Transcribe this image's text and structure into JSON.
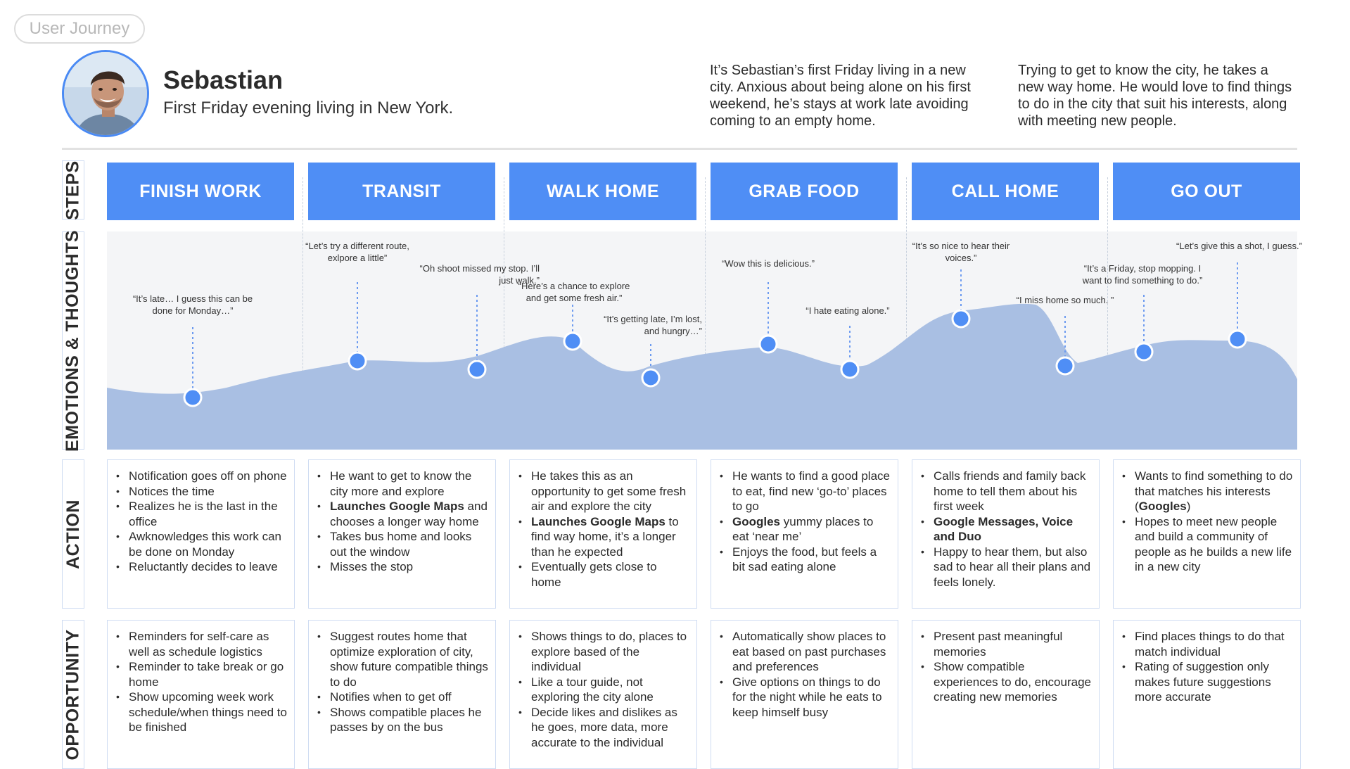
{
  "tag_label": "User Journey",
  "persona": {
    "name": "Sebastian",
    "subtitle": "First Friday evening living in New York."
  },
  "intro_left": [
    "It’s Sebastian’s first Friday living in a new",
    "city. Anxious about being alone on his first",
    "weekend, he’s stays at work late avoiding",
    "coming to an empty home."
  ],
  "intro_right": [
    "Trying to get to know the city, he takes a",
    "new way home. He would love to find things",
    "to do in the city that suit his interests, along",
    "with meeting new people."
  ],
  "row_labels": {
    "steps": "STEPS",
    "emotions": "EMOTIONS & THOUGHTS",
    "action": "ACTION",
    "opportunity": "OPPORTUNITY"
  },
  "accent_color": "#4f8ef5",
  "area_color": "#a9bfe3",
  "steps": [
    "FINISH WORK",
    "TRANSIT",
    "WALK HOME",
    "GRAB FOOD",
    "CALL HOME",
    "GO OUT"
  ],
  "thoughts": [
    {
      "lines": [
        "“It’s late… I guess this can be",
        "done for Monday…”"
      ]
    },
    {
      "lines": [
        "“Let’s try a different route,",
        "exlpore a little”"
      ]
    },
    {
      "lines": [
        "“Oh shoot missed my stop. I’ll",
        "just walk.”"
      ]
    },
    {
      "lines": [
        "“Here’s a chance to explore",
        "and get some fresh air.”"
      ]
    },
    {
      "lines": [
        "“It’s getting late, I’m lost,",
        "and hungry…”"
      ]
    },
    {
      "lines": [
        "“Wow this is delicious.”"
      ]
    },
    {
      "lines": [
        "“I hate eating alone.”"
      ]
    },
    {
      "lines": [
        "“It’s so nice to hear their",
        "voices.”"
      ]
    },
    {
      "lines": [
        "“I miss home so much. ”"
      ]
    },
    {
      "lines": [
        "“It’s a Friday, stop mopping. I",
        "want to find something to do.”"
      ]
    },
    {
      "lines": [
        "“Let’s give this a shot, I guess.”"
      ]
    }
  ],
  "actions": [
    [
      [
        {
          "t": "Notification goes off on phone"
        }
      ],
      [
        {
          "t": "Notices the time"
        }
      ],
      [
        {
          "t": "Realizes he is the last in the office"
        }
      ],
      [
        {
          "t": "Awknowledges this work can be done on Monday"
        }
      ],
      [
        {
          "t": "Reluctantly decides to leave"
        }
      ]
    ],
    [
      [
        {
          "t": "He want to get to know the city more and explore"
        }
      ],
      [
        {
          "t": "Launches Google Maps",
          "b": true
        },
        {
          "t": " and chooses a longer way home"
        }
      ],
      [
        {
          "t": "Takes bus home and looks out the window"
        }
      ],
      [
        {
          "t": "Misses the stop"
        }
      ]
    ],
    [
      [
        {
          "t": "He takes this as an opportunity to get some fresh air and explore the city"
        }
      ],
      [
        {
          "t": "Launches Google Maps",
          "b": true
        },
        {
          "t": " to find way home, it’s a longer than he expected"
        }
      ],
      [
        {
          "t": "Eventually gets close to home"
        }
      ]
    ],
    [
      [
        {
          "t": "He wants to find a good place to eat, find new ‘go-to’ places to go"
        }
      ],
      [
        {
          "t": "Googles",
          "b": true
        },
        {
          "t": " yummy places to eat ‘near me’"
        }
      ],
      [
        {
          "t": "Enjoys the food, but feels a bit sad eating alone"
        }
      ]
    ],
    [
      [
        {
          "t": "Calls friends and family back home to tell them about his first week"
        }
      ],
      [
        {
          "t": "Google Messages, Voice and Duo",
          "b": true
        }
      ],
      [
        {
          "t": "Happy to hear them, but also sad to hear all their plans and feels lonely."
        }
      ]
    ],
    [
      [
        {
          "t": "Wants to find something to do that matches his interests ("
        },
        {
          "t": "Googles",
          "b": true
        },
        {
          "t": ")"
        }
      ],
      [
        {
          "t": "Hopes to meet new people and build a community of people as he builds a new life in a new city"
        }
      ]
    ]
  ],
  "opportunities": [
    [
      "Reminders for self-care as well as schedule logistics",
      "Reminder to take break or go home",
      "Show upcoming week work schedule/when things need to be finished"
    ],
    [
      "Suggest routes home that optimize exploration of city, show future compatible things to do",
      "Notifies when to get off",
      "Shows compatible places he passes by on the bus"
    ],
    [
      "Shows things to do, places to explore based of the individual",
      "Like a tour guide, not exploring the city alone",
      "Decide likes and dislikes as he goes, more data, more accurate to the individual"
    ],
    [
      "Automatically show places to eat based on past purchases and preferences",
      "Give options on things to do for the night while he eats to keep himself busy"
    ],
    [
      "Present past meaningful memories",
      "Show compatible experiences to do, encourage creating new memories"
    ],
    [
      "Find places things to do that match individual",
      "Rating of suggestion only makes future suggestions more accurate"
    ]
  ]
}
